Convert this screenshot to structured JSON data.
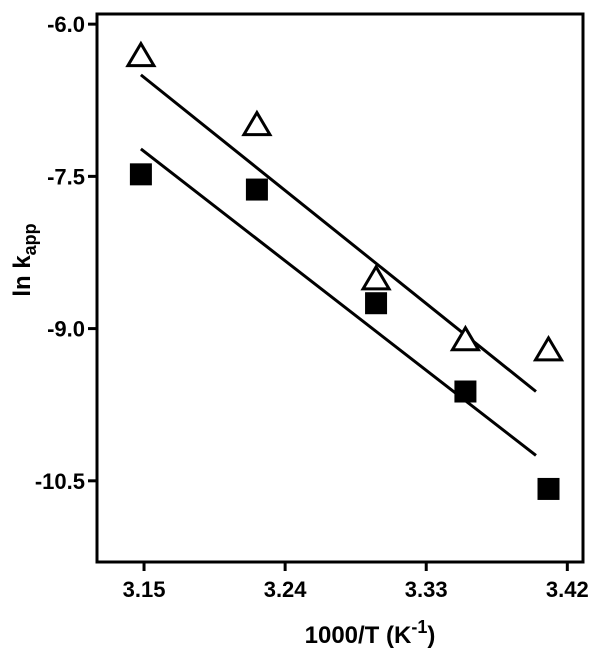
{
  "chart_data": {
    "type": "scatter",
    "xlabel": "1000/T (K",
    "xlabel_sup": "-1",
    "xlabel_close": ")",
    "ylabel": "ln k",
    "ylabel_sub": "app",
    "x_ticks": [
      "3.15",
      "3.24",
      "3.33",
      "3.42"
    ],
    "y_ticks": [
      "-6.0",
      "-7.5",
      "-9.0",
      "-10.5"
    ],
    "xlim": [
      3.12,
      3.43
    ],
    "ylim": [
      -11.3,
      -5.9
    ],
    "grid": false,
    "series": [
      {
        "marker": "open-triangle",
        "x": [
          3.148,
          3.222,
          3.298,
          3.355,
          3.408
        ],
        "y": [
          -6.3,
          -6.98,
          -8.5,
          -9.1,
          -9.2
        ]
      },
      {
        "marker": "filled-square",
        "x": [
          3.148,
          3.222,
          3.298,
          3.355,
          3.408
        ],
        "y": [
          -7.48,
          -7.63,
          -8.75,
          -9.62,
          -10.58
        ]
      }
    ],
    "fit_lines": [
      {
        "x": [
          3.148,
          3.4
        ],
        "y": [
          -6.5,
          -9.62
        ]
      },
      {
        "x": [
          3.148,
          3.4
        ],
        "y": [
          -7.23,
          -10.25
        ]
      }
    ]
  }
}
